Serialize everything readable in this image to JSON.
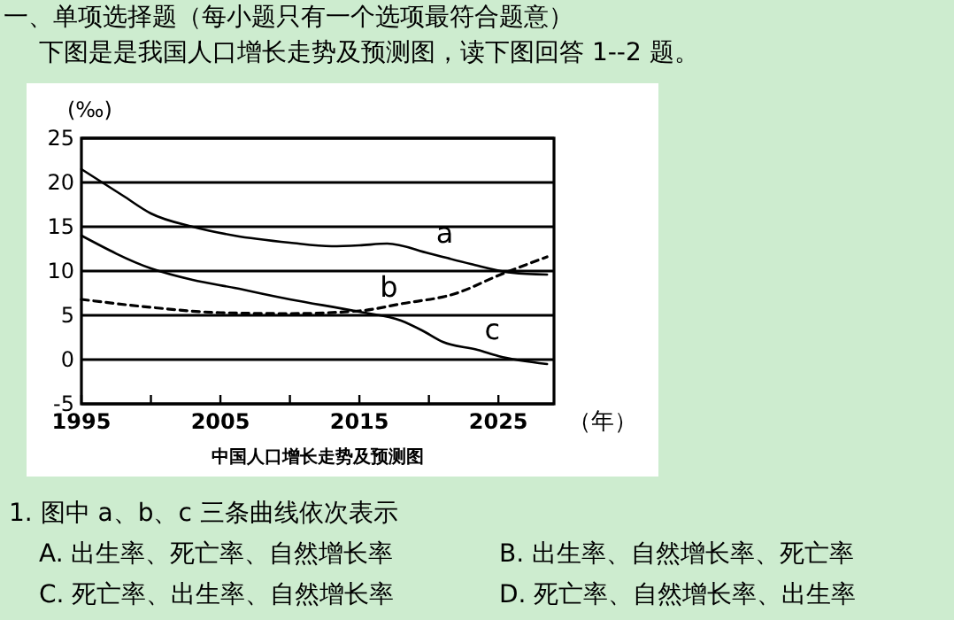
{
  "chart_data": {
    "type": "line",
    "title": "中国人口增长走势及预测图",
    "xlabel": "（年）",
    "ylabel": "(‰)",
    "xlim": [
      1995,
      2029
    ],
    "xticks": [
      1995,
      {
        "value": 2000,
        "label": null
      },
      2005,
      {
        "value": 2010,
        "label": null
      },
      2015,
      {
        "value": 2020,
        "label": null
      },
      2025
    ],
    "ylim": [
      -5,
      25
    ],
    "yticks": [
      -5,
      0,
      5,
      10,
      15,
      20,
      25
    ],
    "grid": "y",
    "marker": "none",
    "series": [
      {
        "name": "a",
        "color": "#000000",
        "line_style": "solid",
        "x": [
          1995,
          1998,
          2000,
          2003,
          2006,
          2010,
          2013,
          2015,
          2017,
          2020,
          2023,
          2026,
          2028.5
        ],
        "values": [
          21.5,
          18.5,
          16.5,
          15,
          14,
          13.2,
          12.8,
          12.9,
          13.1,
          12,
          10.8,
          9.8,
          9.6
        ]
      },
      {
        "name": "b",
        "color": "#000000",
        "line_style": "dashed",
        "x": [
          1995,
          2000,
          2005,
          2010,
          2015,
          2018,
          2022,
          2025,
          2028.5
        ],
        "values": [
          6.8,
          5.9,
          5.3,
          5.2,
          5.5,
          6.3,
          7.5,
          9.5,
          11.6
        ]
      },
      {
        "name": "c",
        "color": "#000000",
        "line_style": "solid",
        "x": [
          1995,
          2000,
          2003,
          2006,
          2010,
          2015,
          2018,
          2019.5,
          2021,
          2023.5,
          2025,
          2028.5
        ],
        "values": [
          14,
          10.3,
          9,
          8.1,
          6.8,
          5.4,
          4.4,
          3.3,
          2,
          1.1,
          0.4,
          -0.5
        ]
      }
    ],
    "annotations": [
      "一、单项选择题（每小题只有一个选项最符合题意）",
      "下图是是我国人口增长走势及预测图，读下图回答 1--2 题。",
      "1. 图中 a、b、c 三条曲线依次表示",
      "A. 出生率、死亡率、自然增长率",
      "B. 出生率、自然增长率、死亡率",
      "C. 死亡率、出生率、自然增长率",
      "D. 死亡率、自然增长率、出生率"
    ]
  }
}
